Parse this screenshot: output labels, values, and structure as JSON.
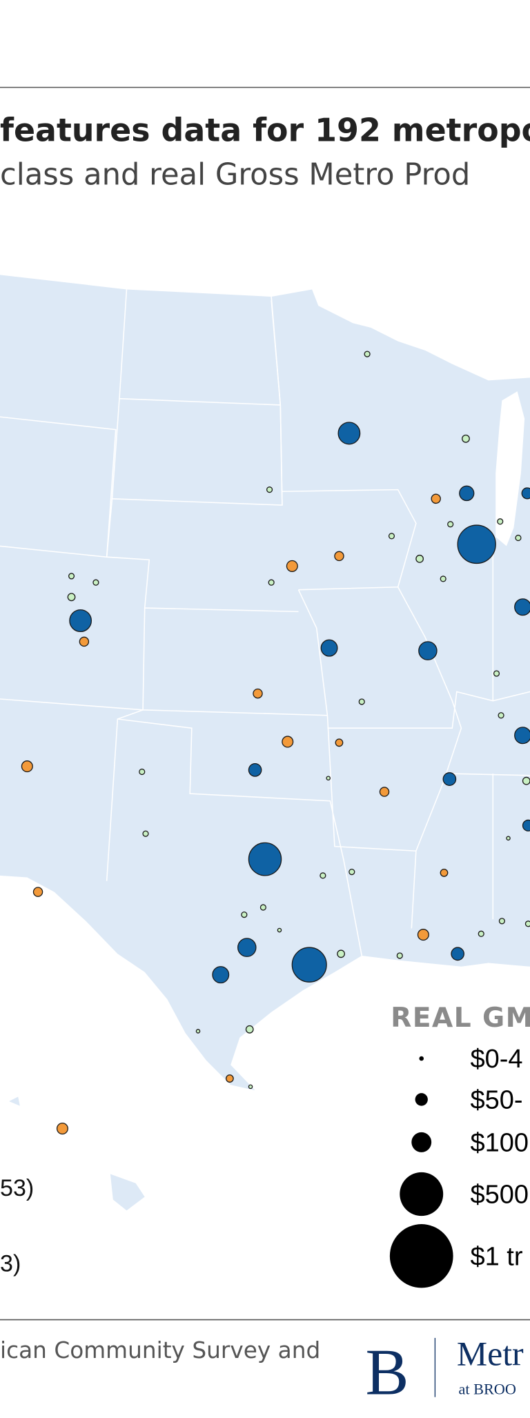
{
  "header": {
    "title": "features data for 192 metropo",
    "subtitle": "class and real Gross Metro Prod"
  },
  "legend": {
    "title": "REAL GM",
    "items": [
      "$0-4",
      "$50-",
      "$100",
      "$500",
      "$1 tr"
    ]
  },
  "left_legend": {
    "items": [
      "53)",
      "3)"
    ]
  },
  "footer": {
    "source": "ican Community Survey and"
  },
  "logo": {
    "mark": "B",
    "name": "Metr",
    "tagline": "at BROO"
  }
}
